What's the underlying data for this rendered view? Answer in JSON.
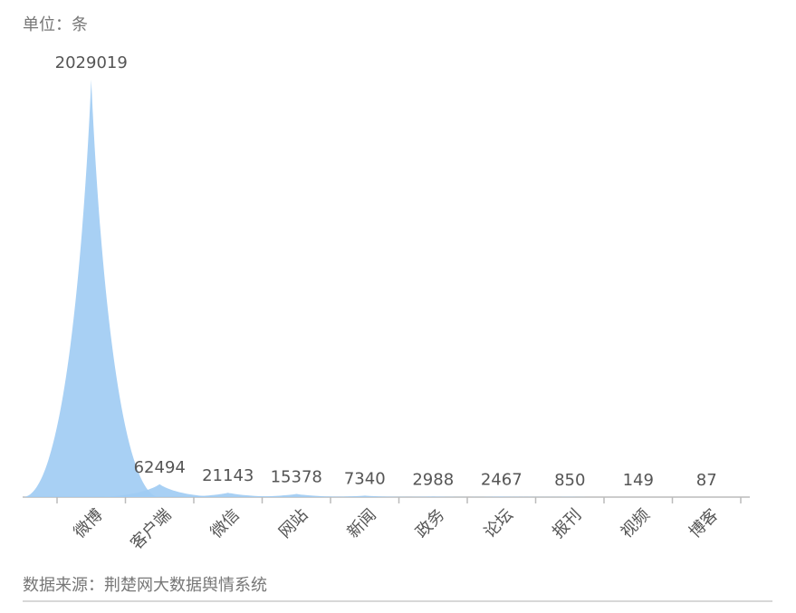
{
  "chart_data": {
    "type": "peak",
    "unit": "单位：条",
    "source": "数据来源：荆楚网大数据舆情系统",
    "categories": [
      "微博",
      "客户端",
      "微信",
      "网站",
      "新闻",
      "政务",
      "论坛",
      "报刊",
      "视频",
      "博客"
    ],
    "values": [
      2029019,
      62494,
      21143,
      15378,
      7340,
      2988,
      2467,
      850,
      149,
      87
    ],
    "color": "#9ecbf3",
    "ylim": [
      0,
      2029019
    ]
  }
}
